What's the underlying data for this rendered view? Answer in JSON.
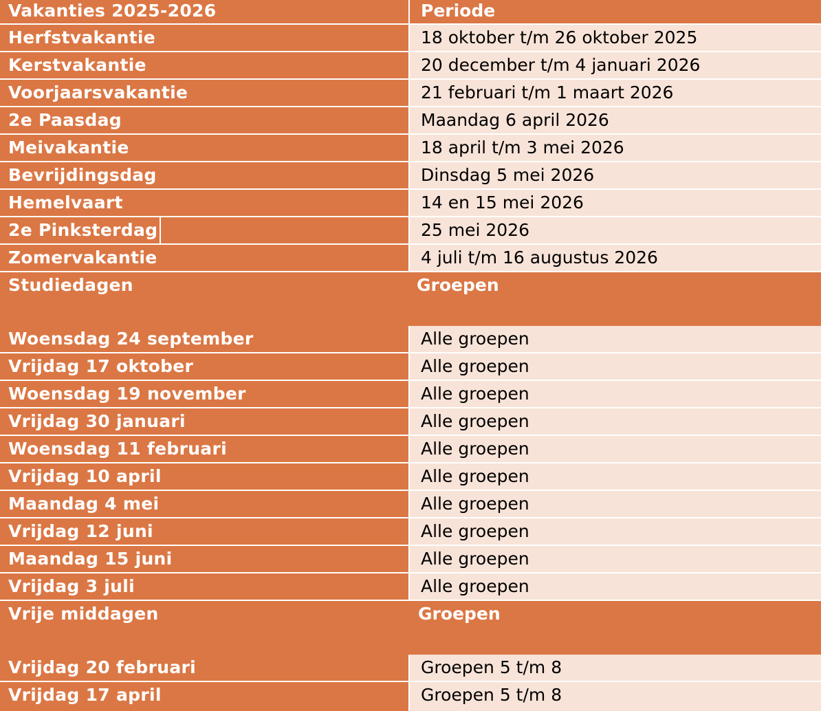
{
  "vacation_header": {
    "col1": "Vakanties 2025-2026",
    "col2": "Periode"
  },
  "vacations": [
    {
      "name": "Herfstvakantie",
      "period": "18 oktober t/m 26 oktober 2025"
    },
    {
      "name": "Kerstvakantie",
      "period": "20 december t/m 4 januari 2026"
    },
    {
      "name": "Voorjaarsvakantie",
      "period": "21 februari t/m 1 maart 2026"
    },
    {
      "name": "2e Paasdag",
      "period": "Maandag 6 april 2026"
    },
    {
      "name": "Meivakantie",
      "period": "18 april t/m 3 mei 2026"
    },
    {
      "name": "Bevrijdingsdag",
      "period": "Dinsdag 5 mei 2026"
    },
    {
      "name": "Hemelvaart",
      "period": "14 en 15 mei 2026"
    },
    {
      "name": "2e Pinksterdag",
      "period": "25 mei 2026"
    },
    {
      "name": "Zomervakantie",
      "period": "4 juli t/m 16 augustus 2026"
    }
  ],
  "study_header": {
    "col1": "Studiedagen",
    "col2": "Groepen"
  },
  "study_days": [
    {
      "day": "Woensdag 24 september",
      "groups": "Alle groepen"
    },
    {
      "day": "Vrijdag 17 oktober",
      "groups": "Alle groepen"
    },
    {
      "day": "Woensdag 19 november",
      "groups": "Alle groepen"
    },
    {
      "day": "Vrijdag 30 januari",
      "groups": "Alle groepen"
    },
    {
      "day": "Woensdag 11 februari",
      "groups": "Alle groepen"
    },
    {
      "day": "Vrijdag 10 april",
      "groups": "Alle groepen"
    },
    {
      "day": "Maandag 4 mei",
      "groups": "Alle groepen"
    },
    {
      "day": "Vrijdag 12 juni",
      "groups": "Alle groepen"
    },
    {
      "day": "Maandag 15 juni",
      "groups": "Alle groepen"
    },
    {
      "day": "Vrijdag 3 juli",
      "groups": "Alle groepen"
    }
  ],
  "afternoon_header": {
    "col1": "Vrije middagen",
    "col2": "Groepen"
  },
  "free_afternoons": [
    {
      "day": "Vrijdag 20 februari",
      "groups": "Groepen 5 t/m 8"
    },
    {
      "day": "Vrijdag 17 april",
      "groups": "Groepen 5 t/m 8"
    }
  ],
  "colors": {
    "header_orange": "#DB7744",
    "cell_peach": "#F8E3D8",
    "header_text": "#FFFFFF",
    "body_text": "#000000"
  }
}
